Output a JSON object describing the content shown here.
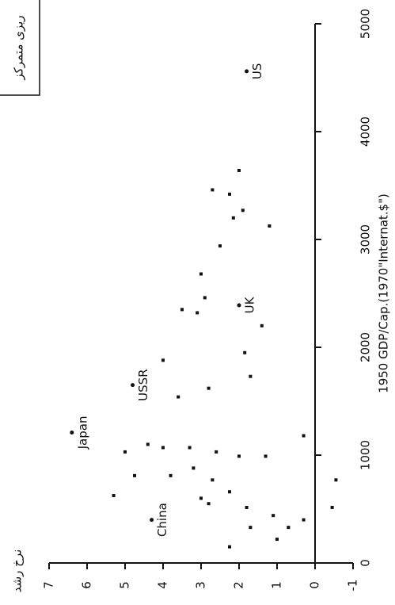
{
  "chart_data": {
    "type": "scatter",
    "title": "ریزی متمرکز",
    "x_label": "1950 GDP/Cap.(1970\"Internat.$\")",
    "y_label": "نرخ رشد",
    "color": "#111111",
    "xlim": [
      0,
      5000
    ],
    "xticks": [
      0,
      1000,
      2000,
      3000,
      4000,
      5000
    ],
    "ylim": [
      -1,
      7
    ],
    "yticks": [
      -1,
      0,
      1,
      2,
      3,
      4,
      5,
      6,
      7
    ],
    "x": [
      3640,
      3420,
      3270,
      3125,
      3460,
      2940,
      2680,
      2460,
      2320,
      2350,
      2200,
      1730,
      1620,
      1540,
      1880,
      1180,
      990,
      990,
      1030,
      1070,
      1070,
      1100,
      810,
      810,
      880,
      770,
      660,
      600,
      550,
      515,
      440,
      330,
      400,
      330,
      220,
      150,
      770,
      515,
      625,
      1030,
      3200,
      1950
    ],
    "values": [
      2.0,
      2.25,
      1.9,
      1.2,
      2.7,
      2.5,
      3.0,
      2.9,
      3.1,
      3.5,
      1.4,
      1.7,
      2.8,
      3.6,
      4.0,
      0.3,
      1.3,
      2.0,
      2.6,
      3.3,
      4.0,
      4.4,
      4.75,
      3.8,
      3.2,
      2.7,
      2.25,
      3.0,
      2.8,
      1.8,
      1.1,
      0.7,
      0.3,
      1.7,
      1.0,
      2.25,
      -0.55,
      -0.45,
      5.3,
      5.0,
      2.15,
      1.85
    ],
    "annotations": [
      {
        "text": "US",
        "x": 4560,
        "y": 1.8
      },
      {
        "text": "UK",
        "x": 2390,
        "y": 2.0
      },
      {
        "text": "USSR",
        "x": 1650,
        "y": 4.8
      },
      {
        "text": "Japan",
        "x": 1210,
        "y": 6.4
      },
      {
        "text": "China",
        "x": 400,
        "y": 4.3
      }
    ]
  }
}
